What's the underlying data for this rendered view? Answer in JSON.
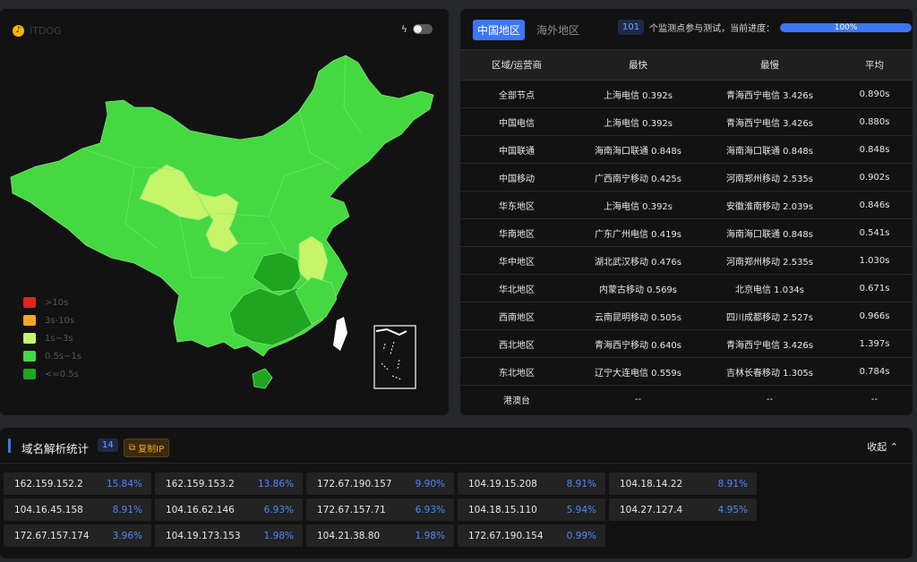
{
  "map_panel": {
    "logo_text": "ITDOG",
    "legend": [
      {
        "label": ">10s",
        "color": "#e02424"
      },
      {
        "label": "3s-10s",
        "color": "#f5a623"
      },
      {
        "label": "1s~3s",
        "color": "#c6f56a"
      },
      {
        "label": "0.5s~1s",
        "color": "#44d841"
      },
      {
        "label": "<=0.5s",
        "color": "#1fa51f"
      }
    ]
  },
  "table_panel": {
    "tabs": [
      {
        "label": "中国地区",
        "active": true
      },
      {
        "label": "海外地区",
        "active": false
      }
    ],
    "count": "101",
    "progress_text": "个监测点参与测试，当前进度：",
    "progress_value": 100,
    "progress_label": "100%",
    "columns": [
      "区域/运营商",
      "最快",
      "最慢",
      "平均"
    ],
    "rows": [
      [
        "全部节点",
        "上海电信 0.392s",
        "青海西宁电信 3.426s",
        "0.890s"
      ],
      [
        "中国电信",
        "上海电信 0.392s",
        "青海西宁电信 3.426s",
        "0.880s"
      ],
      [
        "中国联通",
        "海南海口联通 0.848s",
        "海南海口联通 0.848s",
        "0.848s"
      ],
      [
        "中国移动",
        "广西南宁移动 0.425s",
        "河南郑州移动 2.535s",
        "0.902s"
      ],
      [
        "华东地区",
        "上海电信 0.392s",
        "安徽淮南移动 2.039s",
        "0.846s"
      ],
      [
        "华南地区",
        "广东广州电信 0.419s",
        "海南海口联通 0.848s",
        "0.541s"
      ],
      [
        "华中地区",
        "湖北武汉移动 0.476s",
        "河南郑州移动 2.535s",
        "1.030s"
      ],
      [
        "华北地区",
        "内蒙古移动 0.569s",
        "北京电信 1.034s",
        "0.671s"
      ],
      [
        "西南地区",
        "云南昆明移动 0.505s",
        "四川成都移动 2.527s",
        "0.966s"
      ],
      [
        "西北地区",
        "青海西宁移动 0.640s",
        "青海西宁电信 3.426s",
        "1.397s"
      ],
      [
        "东北地区",
        "辽宁大连电信 0.559s",
        "吉林长春移动 1.305s",
        "0.784s"
      ],
      [
        "港澳台",
        "--",
        "--",
        "--"
      ]
    ]
  },
  "dns_panel": {
    "title": "域名解析统计",
    "count": "14",
    "copy_label": "复制IP",
    "collapse_label": "收起",
    "ips": [
      {
        "ip": "162.159.152.2",
        "pct": "15.84%"
      },
      {
        "ip": "162.159.153.2",
        "pct": "13.86%"
      },
      {
        "ip": "172.67.190.157",
        "pct": "9.90%"
      },
      {
        "ip": "104.19.15.208",
        "pct": "8.91%"
      },
      {
        "ip": "104.18.14.22",
        "pct": "8.91%"
      },
      {
        "ip": "104.16.45.158",
        "pct": "8.91%"
      },
      {
        "ip": "104.16.62.146",
        "pct": "6.93%"
      },
      {
        "ip": "172.67.157.71",
        "pct": "6.93%"
      },
      {
        "ip": "104.18.15.110",
        "pct": "5.94%"
      },
      {
        "ip": "104.27.127.4",
        "pct": "4.95%"
      },
      {
        "ip": "172.67.157.174",
        "pct": "3.96%"
      },
      {
        "ip": "104.19.173.153",
        "pct": "1.98%"
      },
      {
        "ip": "104.21.38.80",
        "pct": "1.98%"
      },
      {
        "ip": "172.67.190.154",
        "pct": "0.99%"
      }
    ]
  }
}
